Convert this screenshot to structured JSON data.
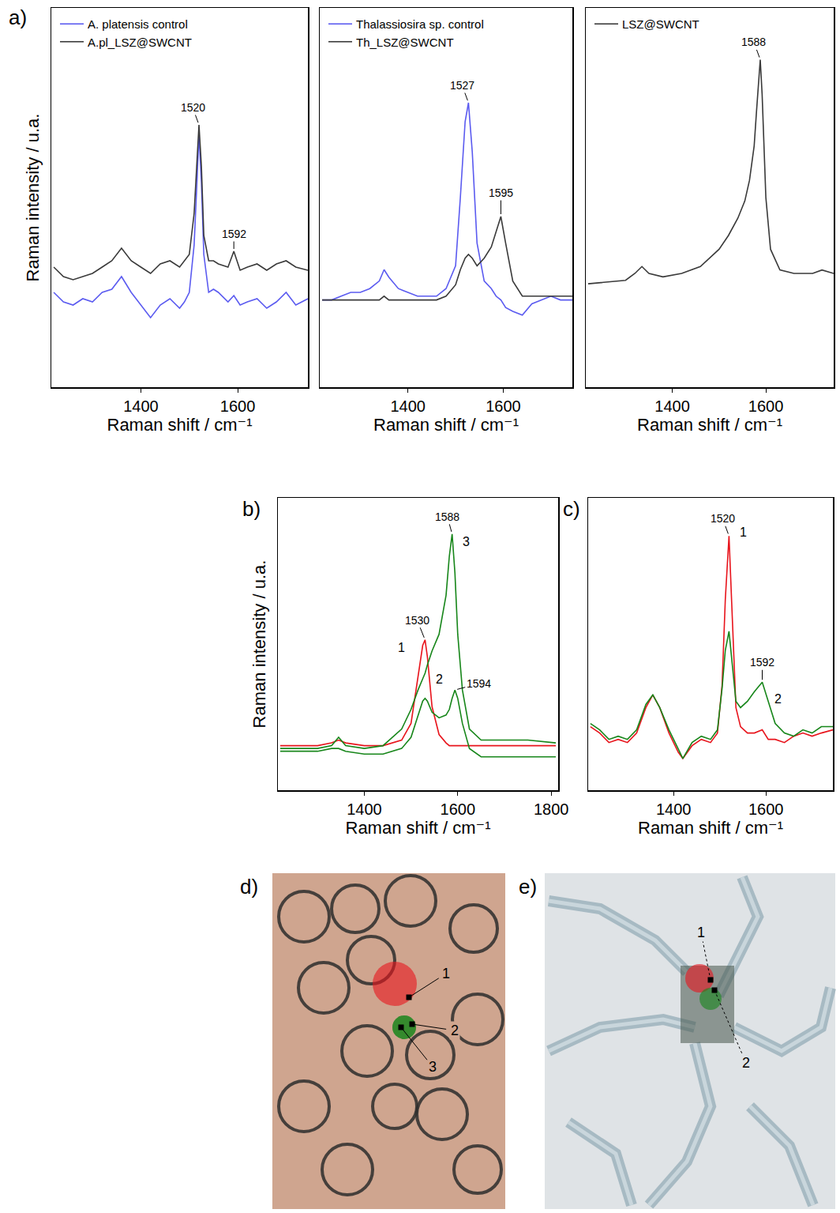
{
  "chart_data": [
    {
      "panel": "a)",
      "type": "line",
      "x_label": "Raman shift / cm⁻¹",
      "y_label": "Raman intensity / u.a.",
      "xlim": [
        1215,
        1745
      ],
      "xticks": [
        1400,
        1600
      ],
      "ylim": [
        0,
        120
      ],
      "tick_labels": "x",
      "legend": "top left",
      "x": [
        1220,
        1240,
        1260,
        1280,
        1300,
        1320,
        1340,
        1360,
        1380,
        1400,
        1420,
        1440,
        1460,
        1480,
        1490,
        1500,
        1510,
        1515,
        1520,
        1525,
        1530,
        1540,
        1550,
        1560,
        1580,
        1592,
        1605,
        1620,
        1640,
        1660,
        1680,
        1700,
        1720,
        1745
      ],
      "series": [
        {
          "name": "A. platensis control",
          "color": "#5b5bf0",
          "values": [
            30,
            27,
            26,
            28,
            27,
            30,
            31,
            35,
            30,
            26,
            22,
            26,
            28,
            25,
            27,
            30,
            45,
            62,
            80,
            65,
            42,
            30,
            31,
            30,
            27,
            29,
            26,
            27,
            28,
            25,
            27,
            30,
            26,
            28
          ]
        },
        {
          "name": "A.pl_LSZ@SWCNT",
          "color": "#3a3a3a",
          "values": [
            38,
            35,
            34,
            35,
            36,
            38,
            40,
            44,
            40,
            38,
            36,
            39,
            40,
            38,
            40,
            42,
            55,
            70,
            83,
            70,
            48,
            40,
            40,
            39,
            38,
            43,
            37,
            38,
            39,
            37,
            39,
            40,
            38,
            37
          ]
        }
      ],
      "annotations": [
        {
          "text": "1520",
          "x": 1520,
          "series": "A.pl_LSZ@SWCNT"
        },
        {
          "text": "1592",
          "x": 1592,
          "series": "A.pl_LSZ@SWCNT"
        }
      ]
    },
    {
      "type": "line",
      "x_label": "Raman shift / cm⁻¹",
      "xlim": [
        1215,
        1745
      ],
      "xticks": [
        1400,
        1600
      ],
      "ylim": [
        10,
        110
      ],
      "tick_labels": "x",
      "legend": "top left",
      "x": [
        1220,
        1240,
        1260,
        1280,
        1300,
        1320,
        1340,
        1350,
        1360,
        1380,
        1400,
        1420,
        1440,
        1460,
        1480,
        1500,
        1510,
        1520,
        1527,
        1535,
        1545,
        1560,
        1575,
        1585,
        1595,
        1605,
        1620,
        1640,
        1660,
        1680,
        1700,
        1720,
        1745
      ],
      "series": [
        {
          "name": "Thalassiosira sp. control",
          "color": "#5b5bf0",
          "values": [
            33,
            33,
            34,
            35,
            35,
            36,
            38,
            41,
            39,
            36,
            35,
            34,
            34,
            34,
            36,
            42,
            60,
            80,
            85,
            72,
            48,
            38,
            36,
            34,
            33,
            31,
            30,
            29,
            32,
            33,
            34,
            33,
            33
          ]
        },
        {
          "name": "Th_LSZ@SWCNT",
          "color": "#3a3a3a",
          "values": [
            33,
            33,
            33,
            33,
            33,
            33,
            33,
            34,
            33,
            33,
            33,
            33,
            33,
            33,
            34,
            37,
            41,
            44,
            45,
            44,
            42,
            44,
            47,
            51,
            55,
            48,
            38,
            34,
            34,
            34,
            34,
            34,
            34
          ]
        }
      ],
      "annotations": [
        {
          "text": "1527",
          "x": 1527,
          "series": "Thalassiosira sp. control"
        },
        {
          "text": "1595",
          "x": 1595,
          "series": "Th_LSZ@SWCNT"
        }
      ]
    },
    {
      "type": "line",
      "x_label": "Raman shift / cm⁻¹",
      "xlim": [
        1215,
        1745
      ],
      "xticks": [
        1400,
        1600
      ],
      "ylim": [
        0,
        110
      ],
      "tick_labels": "x",
      "legend": "top left",
      "x": [
        1220,
        1260,
        1300,
        1320,
        1335,
        1350,
        1380,
        1420,
        1460,
        1500,
        1520,
        1540,
        1555,
        1565,
        1575,
        1580,
        1585,
        1588,
        1592,
        1600,
        1610,
        1630,
        1660,
        1700,
        1720,
        1745
      ],
      "series": [
        {
          "name": "LSZ@SWCNT",
          "color": "#3a3a3a",
          "values": [
            30,
            30.5,
            31,
            33,
            35,
            33,
            32,
            33,
            35,
            40,
            44,
            49,
            54,
            60,
            70,
            80,
            90,
            95,
            85,
            55,
            40,
            34,
            33,
            33,
            34,
            33
          ]
        }
      ],
      "annotations": [
        {
          "text": "1588",
          "x": 1588,
          "series": "LSZ@SWCNT"
        }
      ]
    },
    {
      "panel": "b)",
      "type": "line",
      "x_label": "Raman shift / cm⁻¹",
      "y_label": "Raman intensity / u.a.",
      "xlim": [
        1215,
        1815
      ],
      "xticks": [
        1400,
        1600,
        1800
      ],
      "ylim": [
        0,
        105
      ],
      "tick_labels": "x",
      "legend": false,
      "x": [
        1220,
        1260,
        1300,
        1330,
        1345,
        1360,
        1400,
        1440,
        1480,
        1500,
        1515,
        1525,
        1530,
        1535,
        1545,
        1560,
        1575,
        1582,
        1588,
        1594,
        1600,
        1610,
        1625,
        1650,
        1700,
        1750,
        1810
      ],
      "series": [
        {
          "name": "1",
          "color": "#e8141c",
          "values": [
            16,
            16,
            16,
            17,
            18,
            17,
            16,
            16,
            18,
            24,
            40,
            52,
            54,
            48,
            30,
            20,
            17,
            16,
            16,
            16,
            16,
            16,
            16,
            16,
            16,
            16,
            16
          ]
        },
        {
          "name": "2",
          "color": "#17861a",
          "values": [
            14,
            14,
            14,
            15,
            15,
            14,
            13,
            13,
            15,
            19,
            27,
            32,
            33,
            32,
            28,
            26,
            27,
            29,
            33,
            36,
            33,
            24,
            15,
            12,
            12,
            12,
            12
          ]
        },
        {
          "name": "3",
          "color": "#17861a",
          "values": [
            15,
            15,
            15,
            16,
            19,
            16,
            15,
            16,
            22,
            29,
            36,
            40,
            42,
            45,
            50,
            56,
            70,
            84,
            92,
            78,
            56,
            36,
            22,
            18,
            18,
            18,
            17
          ]
        }
      ],
      "annotations": [
        {
          "text": "1588",
          "x": 1588,
          "series": "3"
        },
        {
          "text": "1530",
          "x": 1530,
          "series": "1"
        },
        {
          "text": "1594",
          "x": 1594,
          "series": "2"
        }
      ]
    },
    {
      "panel": "c)",
      "type": "line",
      "x_label": "Raman shift / cm⁻¹",
      "xlim": [
        1215,
        1745
      ],
      "xticks": [
        1400,
        1600
      ],
      "ylim": [
        12,
        104
      ],
      "tick_labels": "x",
      "legend": false,
      "x": [
        1220,
        1240,
        1260,
        1280,
        1300,
        1320,
        1340,
        1355,
        1370,
        1390,
        1410,
        1420,
        1440,
        1460,
        1480,
        1495,
        1505,
        1512,
        1520,
        1528,
        1535,
        1545,
        1560,
        1575,
        1592,
        1605,
        1620,
        1640,
        1660,
        1680,
        1700,
        1720,
        1745
      ],
      "series": [
        {
          "name": "1",
          "color": "#e8141c",
          "values": [
            32,
            30,
            27,
            28,
            27,
            30,
            38,
            42,
            38,
            30,
            24,
            22,
            26,
            28,
            27,
            30,
            45,
            72,
            92,
            65,
            38,
            32,
            30,
            30,
            31,
            28,
            28,
            27,
            29,
            30,
            29,
            30,
            31
          ]
        },
        {
          "name": "2",
          "color": "#17861a",
          "values": [
            33,
            31,
            28,
            29,
            28,
            31,
            39,
            42,
            38,
            31,
            25,
            22,
            27,
            29,
            28,
            31,
            44,
            56,
            62,
            50,
            40,
            38,
            40,
            43,
            46,
            40,
            33,
            30,
            29,
            31,
            30,
            32,
            32
          ]
        }
      ],
      "annotations": [
        {
          "text": "1520",
          "x": 1520,
          "series": "1"
        },
        {
          "text": "1592",
          "x": 1592,
          "series": "2"
        }
      ]
    }
  ],
  "micrographs": [
    {
      "panel": "d)",
      "spots": [
        {
          "label": "1",
          "color": "#e8141c"
        },
        {
          "label": "2",
          "color": "#17861a"
        },
        {
          "label": "3",
          "color": "#17861a"
        }
      ]
    },
    {
      "panel": "e)",
      "spots": [
        {
          "label": "1",
          "color": "#e8141c"
        },
        {
          "label": "2",
          "color": "#17861a"
        }
      ]
    }
  ]
}
